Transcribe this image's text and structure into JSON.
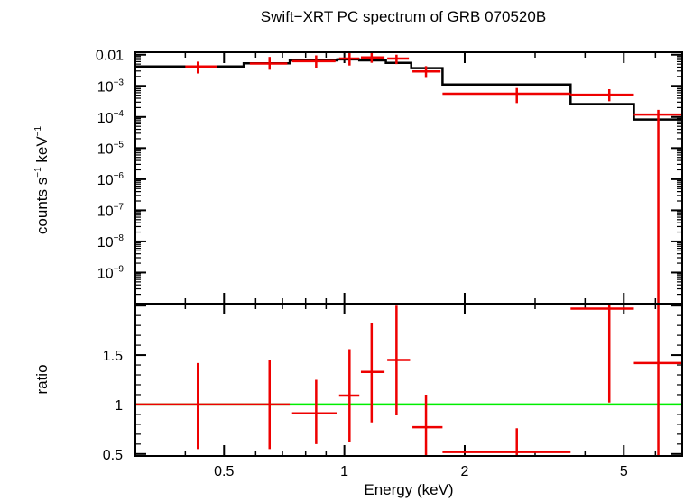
{
  "chart_data": [
    {
      "panel": "spectrum",
      "type": "line",
      "title": "Swift−XRT PC spectrum of GRB 070520B",
      "xlabel": "Energy (keV)",
      "ylabel": {
        "main": "counts s",
        "sup1": "−1",
        "mid": " keV",
        "sup2": "−1"
      },
      "xscale": "log",
      "yscale": "log",
      "xlim": [
        0.3,
        7.0
      ],
      "ylim": [
        1e-10,
        0.012
      ],
      "ytick_labels": [
        {
          "value": 0.01,
          "base": "0.01",
          "exp": ""
        },
        {
          "value": 0.001,
          "base": "10",
          "exp": "−3"
        },
        {
          "value": 0.0001,
          "base": "10",
          "exp": "−4"
        },
        {
          "value": 1e-05,
          "base": "10",
          "exp": "−5"
        },
        {
          "value": 1e-06,
          "base": "10",
          "exp": "−6"
        },
        {
          "value": 1e-07,
          "base": "10",
          "exp": "−7"
        },
        {
          "value": 1e-08,
          "base": "10",
          "exp": "−8"
        },
        {
          "value": 1e-09,
          "base": "10",
          "exp": "−9"
        }
      ],
      "series": [
        {
          "kind": "data",
          "color": "#ee0000",
          "points": [
            {
              "x": 0.43,
              "xlo": 0.4,
              "xhi": 0.48,
              "y": 0.0042,
              "ylo": 0.0025,
              "yhi": 0.006
            },
            {
              "x": 0.65,
              "xlo": 0.58,
              "xhi": 0.72,
              "y": 0.0052,
              "ylo": 0.0033,
              "yhi": 0.0085
            },
            {
              "x": 0.85,
              "xlo": 0.74,
              "xhi": 0.95,
              "y": 0.0062,
              "ylo": 0.0038,
              "yhi": 0.0095
            },
            {
              "x": 1.03,
              "xlo": 0.97,
              "xhi": 1.09,
              "y": 0.0075,
              "ylo": 0.0045,
              "yhi": 0.0112
            },
            {
              "x": 1.17,
              "xlo": 1.1,
              "xhi": 1.26,
              "y": 0.0082,
              "ylo": 0.0055,
              "yhi": 0.012
            },
            {
              "x": 1.35,
              "xlo": 1.28,
              "xhi": 1.45,
              "y": 0.0075,
              "ylo": 0.005,
              "yhi": 0.01
            },
            {
              "x": 1.6,
              "xlo": 1.48,
              "xhi": 1.74,
              "y": 0.0029,
              "ylo": 0.0018,
              "yhi": 0.0043
            },
            {
              "x": 2.7,
              "xlo": 1.76,
              "xhi": 3.68,
              "y": 0.00056,
              "ylo": 0.00028,
              "yhi": 0.00085
            },
            {
              "x": 4.6,
              "xlo": 3.68,
              "xhi": 5.3,
              "y": 0.00052,
              "ylo": 0.00032,
              "yhi": 0.00078
            },
            {
              "x": 6.1,
              "xlo": 5.3,
              "xhi": 7.0,
              "y": 0.00012,
              "ylo": 1e-10,
              "yhi": 0.00017
            }
          ]
        },
        {
          "kind": "model",
          "color": "#000000",
          "steps": [
            {
              "xlo": 0.3,
              "xhi": 0.56,
              "y": 0.0042
            },
            {
              "xlo": 0.56,
              "xhi": 0.73,
              "y": 0.0053
            },
            {
              "xlo": 0.73,
              "xhi": 0.96,
              "y": 0.0066
            },
            {
              "xlo": 0.96,
              "xhi": 1.09,
              "y": 0.0071
            },
            {
              "xlo": 1.09,
              "xhi": 1.27,
              "y": 0.0066
            },
            {
              "xlo": 1.27,
              "xhi": 1.47,
              "y": 0.0055
            },
            {
              "xlo": 1.47,
              "xhi": 1.76,
              "y": 0.0037
            },
            {
              "xlo": 1.76,
              "xhi": 3.68,
              "y": 0.0011
            },
            {
              "xlo": 3.68,
              "xhi": 5.3,
              "y": 0.00026
            },
            {
              "xlo": 5.3,
              "xhi": 7.0,
              "y": 8.3e-05
            }
          ]
        }
      ]
    },
    {
      "panel": "ratio",
      "type": "scatter",
      "ylabel": "ratio",
      "xlabel": "Energy (keV)",
      "xscale": "log",
      "xlim": [
        0.3,
        7.0
      ],
      "ylim": [
        0.48,
        2.02
      ],
      "xtick_labels": [
        {
          "value": 0.5,
          "label": "0.5"
        },
        {
          "value": 1,
          "label": "1"
        },
        {
          "value": 2,
          "label": "2"
        },
        {
          "value": 5,
          "label": "5"
        }
      ],
      "ytick_labels": [
        {
          "value": 0.5,
          "label": "0.5"
        },
        {
          "value": 1,
          "label": "1"
        },
        {
          "value": 1.5,
          "label": "1.5"
        }
      ],
      "reference_line": {
        "y": 1,
        "color": "#00ee00"
      },
      "series": [
        {
          "kind": "data",
          "color": "#ee0000",
          "points": [
            {
              "x": 0.43,
              "xlo": 0.3,
              "xhi": 0.56,
              "y": 1.0,
              "ylo": 0.55,
              "yhi": 1.42
            },
            {
              "x": 0.65,
              "xlo": 0.56,
              "xhi": 0.73,
              "y": 1.0,
              "ylo": 0.55,
              "yhi": 1.45
            },
            {
              "x": 0.85,
              "xlo": 0.74,
              "xhi": 0.96,
              "y": 0.91,
              "ylo": 0.6,
              "yhi": 1.25
            },
            {
              "x": 1.03,
              "xlo": 0.97,
              "xhi": 1.09,
              "y": 1.09,
              "ylo": 0.62,
              "yhi": 1.56
            },
            {
              "x": 1.17,
              "xlo": 1.1,
              "xhi": 1.26,
              "y": 1.33,
              "ylo": 0.82,
              "yhi": 1.82
            },
            {
              "x": 1.35,
              "xlo": 1.28,
              "xhi": 1.46,
              "y": 1.45,
              "ylo": 0.89,
              "yhi": 2.0
            },
            {
              "x": 1.6,
              "xlo": 1.48,
              "xhi": 1.76,
              "y": 0.77,
              "ylo": 0.48,
              "yhi": 1.1
            },
            {
              "x": 2.7,
              "xlo": 1.76,
              "xhi": 3.68,
              "y": 0.52,
              "ylo": 0.48,
              "yhi": 0.76
            },
            {
              "x": 4.6,
              "xlo": 3.68,
              "xhi": 5.3,
              "y": 1.97,
              "ylo": 1.02,
              "yhi": 2.02
            },
            {
              "x": 6.1,
              "xlo": 5.3,
              "xhi": 7.0,
              "y": 1.42,
              "ylo": 0.48,
              "yhi": 2.02
            }
          ]
        }
      ]
    }
  ]
}
